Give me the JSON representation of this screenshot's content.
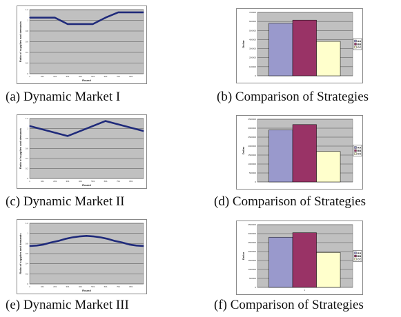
{
  "figure": {
    "panels": [
      {
        "caption": "(a) Dynamic Market I"
      },
      {
        "caption": "(b) Comparison of Strategies"
      },
      {
        "caption": "(c) Dynamic Market II"
      },
      {
        "caption": "(d) Comparison of Strategies"
      },
      {
        "caption": "(e) Dynamic Market III"
      },
      {
        "caption": "(f) Comparison of Strategies"
      }
    ]
  },
  "colors": {
    "line": "#1f2a7a",
    "plot_area": "#c0c0c0",
    "bar_1": "#9999cc",
    "bar_2": "#993366",
    "bar_3": "#ffffcc"
  },
  "chart_data": [
    {
      "type": "line",
      "xlabel": "Round",
      "ylabel": "Ratio of supplies and demands",
      "x_ticks": [
        "1",
        "101",
        "201",
        "301",
        "401",
        "501",
        "601",
        "701",
        "801"
      ],
      "y_ticks": [
        "0",
        "0.2",
        "0.4",
        "0.6",
        "0.8",
        "1",
        "1.2"
      ],
      "xlim": [
        1,
        900
      ],
      "ylim": [
        0,
        1.2
      ],
      "x": [
        1,
        200,
        300,
        500,
        600,
        700,
        900
      ],
      "y": [
        1.05,
        1.05,
        0.93,
        0.93,
        1.05,
        1.15,
        1.15
      ],
      "grid": true
    },
    {
      "type": "bar",
      "ylabel": "Dollar",
      "y_ticks": [
        "0",
        "100000",
        "200000",
        "300000",
        "400000",
        "500000",
        "600000",
        "700000"
      ],
      "ylim": [
        0,
        700000
      ],
      "categories": [
        ""
      ],
      "series": [
        {
          "values": [
            580000
          ]
        },
        {
          "values": [
            615000
          ]
        },
        {
          "values": [
            380000
          ]
        }
      ],
      "legend_labels": [
        "AA",
        "BB",
        "CC"
      ],
      "legend": "right",
      "grid": true
    },
    {
      "type": "line",
      "xlabel": "Round",
      "ylabel": "Ratio of supplies and demands",
      "x_ticks": [
        "1",
        "101",
        "201",
        "301",
        "401",
        "501",
        "601",
        "701",
        "801"
      ],
      "y_ticks": [
        "0",
        "0.2",
        "0.4",
        "0.6",
        "0.8",
        "1",
        "1.2"
      ],
      "xlim": [
        1,
        900
      ],
      "ylim": [
        0,
        1.2
      ],
      "x": [
        1,
        300,
        600,
        900
      ],
      "y": [
        1.05,
        0.85,
        1.15,
        0.95
      ],
      "grid": true
    },
    {
      "type": "bar",
      "ylabel": "Dollar",
      "y_ticks": [
        "0",
        "500000",
        "1000000",
        "1500000",
        "2000000",
        "2500000",
        "3000000",
        "3500000"
      ],
      "ylim": [
        0,
        3500000
      ],
      "categories": [
        ""
      ],
      "series": [
        {
          "values": [
            2900000
          ]
        },
        {
          "values": [
            3200000
          ]
        },
        {
          "values": [
            1700000
          ]
        }
      ],
      "legend_labels": [
        "AA",
        "BB",
        "CC"
      ],
      "legend": "right",
      "grid": true
    },
    {
      "type": "line",
      "xlabel": "Round",
      "ylabel": "Ratio of supplies and demands",
      "x_ticks": [
        "1",
        "101",
        "201",
        "301",
        "401",
        "501",
        "601",
        "701",
        "801"
      ],
      "y_ticks": [
        "0",
        "0.2",
        "0.4",
        "0.6",
        "0.8",
        "1",
        "1.2"
      ],
      "xlim": [
        1,
        900
      ],
      "ylim": [
        0,
        1.2
      ],
      "x": [
        1,
        56,
        112,
        169,
        225,
        281,
        337,
        394,
        450,
        506,
        562,
        619,
        675,
        731,
        787,
        844,
        900
      ],
      "y": [
        0.75,
        0.76,
        0.78,
        0.82,
        0.85,
        0.89,
        0.92,
        0.94,
        0.95,
        0.94,
        0.92,
        0.89,
        0.85,
        0.82,
        0.78,
        0.76,
        0.75
      ],
      "grid": true
    },
    {
      "type": "bar",
      "ylabel": "Dollar",
      "y_ticks": [
        "0",
        "500000",
        "1000000",
        "1500000",
        "2000000",
        "2500000",
        "3000000",
        "3500000"
      ],
      "ylim": [
        0,
        3500000
      ],
      "categories": [
        "1"
      ],
      "series": [
        {
          "values": [
            2800000
          ]
        },
        {
          "values": [
            3050000
          ]
        },
        {
          "values": [
            1950000
          ]
        }
      ],
      "legend_labels": [
        "AA",
        "BB",
        "CC"
      ],
      "legend": "right",
      "grid": true
    }
  ]
}
